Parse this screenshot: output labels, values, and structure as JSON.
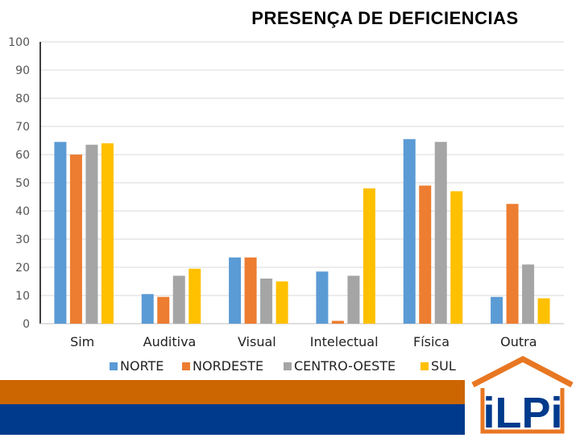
{
  "chart_data": {
    "type": "bar",
    "title": "PRESENÇA DE DEFICIENCIAS",
    "xlabel": "",
    "ylabel": "",
    "ylim": [
      0,
      100
    ],
    "yticks": [
      0,
      10,
      20,
      30,
      40,
      50,
      60,
      70,
      80,
      90,
      100
    ],
    "grid": true,
    "legend_position": "bottom",
    "categories": [
      "Sim",
      "Auditiva",
      "Visual",
      "Intelectual",
      "Física",
      "Outra"
    ],
    "series": [
      {
        "name": "NORTE",
        "color": "#5b9bd5",
        "values": [
          64.5,
          10.5,
          23.5,
          18.5,
          65.5,
          9.5
        ]
      },
      {
        "name": "NORDESTE",
        "color": "#ed7d31",
        "values": [
          60,
          9.5,
          23.5,
          1,
          49,
          42.5
        ]
      },
      {
        "name": "CENTRO-OESTE",
        "color": "#a5a5a5",
        "values": [
          63.5,
          17,
          16,
          17,
          64.5,
          21
        ]
      },
      {
        "name": "SUL",
        "color": "#ffc000",
        "values": [
          64,
          19.5,
          15,
          48,
          47,
          9
        ]
      }
    ]
  },
  "branding": {
    "logo_text": "iLPi",
    "band_colors": {
      "orange": "#cc6600",
      "blue": "#003a8c"
    }
  }
}
